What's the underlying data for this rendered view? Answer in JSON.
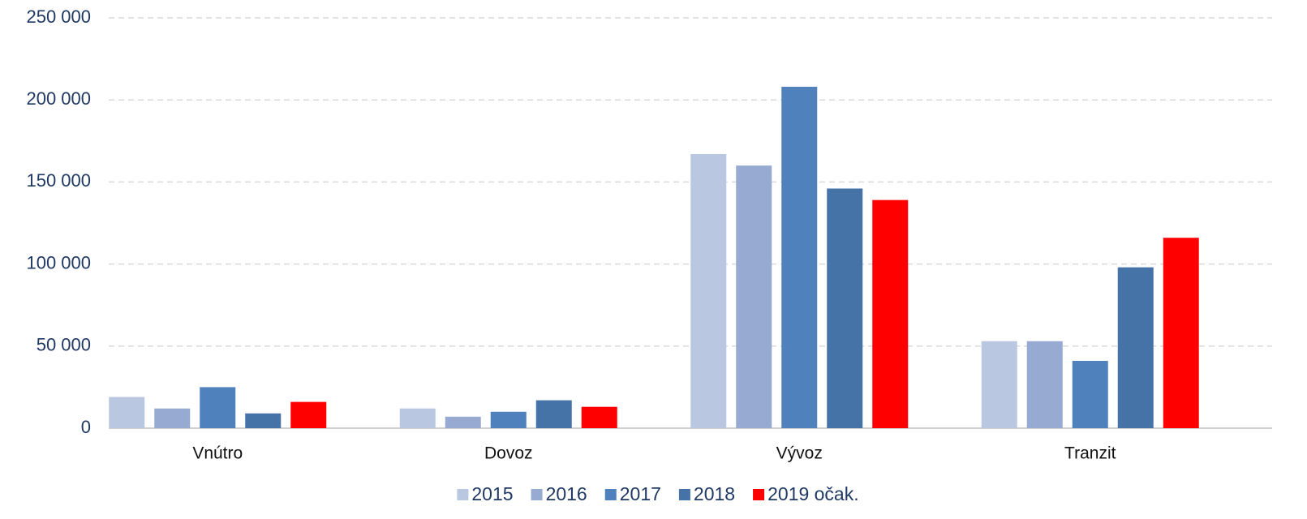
{
  "chart_data": {
    "type": "bar",
    "categories": [
      "Vnútro",
      "Dovoz",
      "Vývoz",
      "Tranzit"
    ],
    "series": [
      {
        "name": "2015",
        "color": "#b9c7e0",
        "values": [
          19000,
          12000,
          167000,
          53000
        ]
      },
      {
        "name": "2016",
        "color": "#96aad2",
        "values": [
          12000,
          7000,
          160000,
          53000
        ]
      },
      {
        "name": "2017",
        "color": "#4f81bd",
        "values": [
          25000,
          10000,
          208000,
          41000
        ]
      },
      {
        "name": "2018",
        "color": "#4572a7",
        "values": [
          9000,
          17000,
          146000,
          98000
        ]
      },
      {
        "name": "2019 očak.",
        "color": "#ff0000",
        "values": [
          16000,
          13000,
          139000,
          116000
        ]
      }
    ],
    "ylim": [
      0,
      250000
    ],
    "yticks": [
      0,
      {
        "value": 50000,
        "label": "50 000"
      },
      {
        "value": 100000,
        "label": "100 000"
      },
      {
        "value": 150000,
        "label": "150 000"
      },
      {
        "value": 200000,
        "label": "200 000"
      },
      {
        "value": 250000,
        "label": "250 000"
      }
    ],
    "grid": true,
    "legend": "bottom"
  }
}
